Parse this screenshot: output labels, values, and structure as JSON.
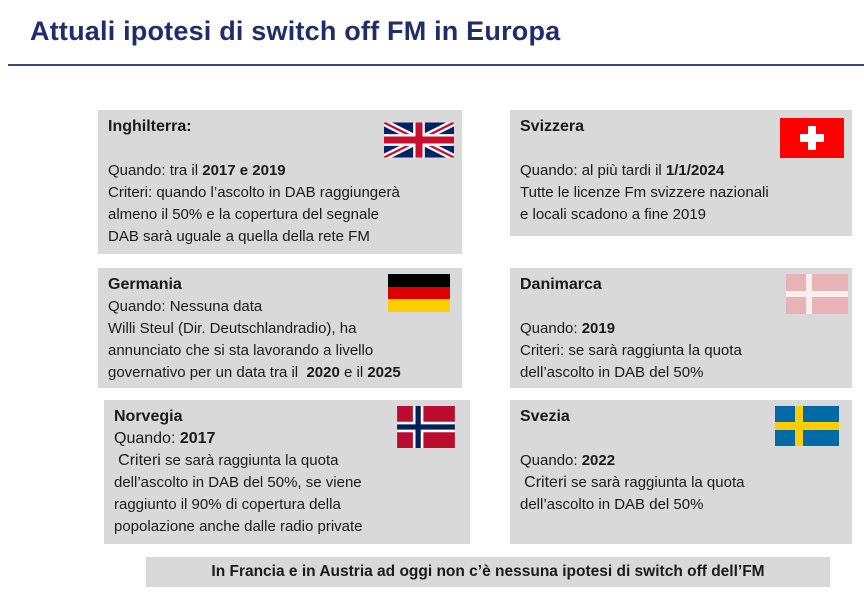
{
  "header": {
    "title": "Attuali ipotesi di switch off FM in Europa"
  },
  "boxes": {
    "uk": {
      "country": "Inghilterra:",
      "when_label": "Quando:",
      "when_text": " tra il ",
      "when_value": "2017 e 2019",
      "l1": "Criteri: quando l’ascolto in DAB raggiungerà",
      "l2": "almeno il 50% e la copertura del segnale",
      "l3": "DAB sarà uguale a quella della rete FM"
    },
    "ch": {
      "country": "Svizzera",
      "when_text": "Quando: al più tardi il ",
      "when_value": "1/1/2024",
      "l1": "Tutte le licenze Fm svizzere nazionali",
      "l2": "e locali scadono a fine 2019"
    },
    "de": {
      "country": "Germania",
      "l0": "Quando: Nessuna data",
      "l1": "Willi Steul (Dir. Deutschlandradio), ha",
      "l2": "annunciato che si sta lavorando a livello",
      "l3_pre": "governativo per un data tra il  ",
      "l3_v1": "2020",
      "l3_mid": " e il ",
      "l3_v2": "2025"
    },
    "dk": {
      "country": "Danimarca",
      "when_text": "Quando: ",
      "when_value": "2019",
      "l1": "Criteri: se sarà raggiunta la quota",
      "l2": "dell’ascolto in DAB del 50%"
    },
    "no": {
      "country": "Norvegia",
      "when_text": "Quando: ",
      "when_value": "2017",
      "l1_a": "Criteri",
      "l1_b": " se sarà raggiunta la quota",
      "l2": "dell’ascolto in DAB del 50%, se viene",
      "l3": "raggiunto il 90% di copertura della",
      "l4": "popolazione anche dalle radio private"
    },
    "se": {
      "country": "Svezia",
      "when_text": "Quando: ",
      "when_value": "2022",
      "l1_a": "Criteri",
      "l1_b": " se sarà raggiunta la quota",
      "l2": "dell’ascolto in DAB del 50%"
    }
  },
  "footer": {
    "text": "In Francia e in Austria ad oggi non c’è nessuna ipotesi di switch off dell’FM"
  }
}
